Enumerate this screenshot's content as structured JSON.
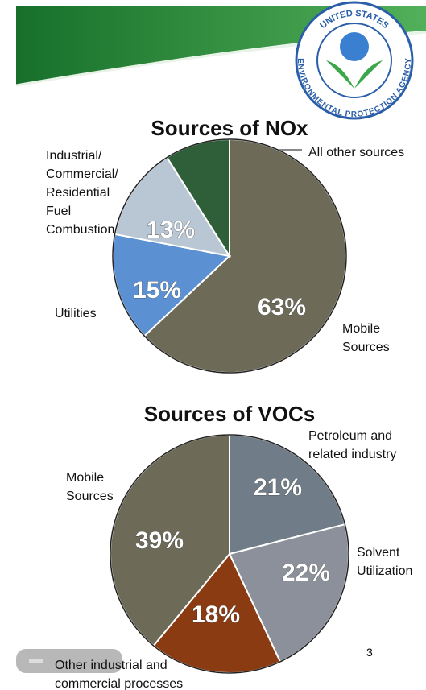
{
  "logo": {
    "top_text": "UNITED STATES",
    "bottom_text": "ENVIRONMENTAL PROTECTION AGENCY"
  },
  "slide_number": "3",
  "chart_data": [
    {
      "type": "pie",
      "title": "Sources of NOx",
      "categories": [
        "Mobile Sources",
        "Utilities",
        "Industrial/ Commercial/ Residential Fuel Combustion",
        "All other sources"
      ],
      "values": [
        63,
        15,
        13,
        9
      ],
      "value_labels": [
        "63%",
        "15%",
        "13%",
        null
      ],
      "colors": [
        "#6e6a58",
        "#5b90d2",
        "#b9c6d4",
        "#2f5f38"
      ]
    },
    {
      "type": "pie",
      "title": "Sources of VOCs",
      "categories": [
        "Petroleum and related industry",
        "Solvent Utilization",
        "Other industrial and commercial processes",
        "Mobile Sources"
      ],
      "values": [
        21,
        22,
        18,
        39
      ],
      "value_labels": [
        "21%",
        "22%",
        "18%",
        "39%"
      ],
      "colors": [
        "#707d88",
        "#8c909a",
        "#8a3b12",
        "#6e6a58"
      ]
    }
  ]
}
